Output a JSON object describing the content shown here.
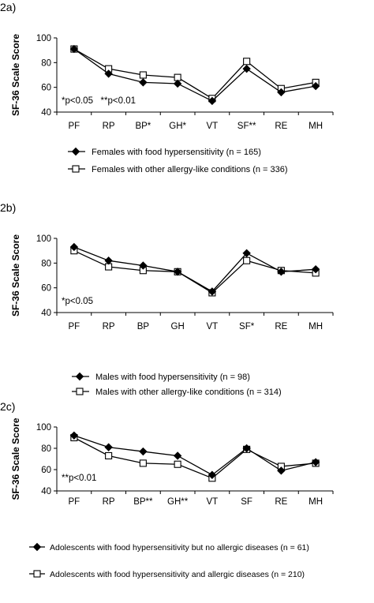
{
  "chart_data": [
    {
      "panel_label": "2a)",
      "type": "line",
      "ylabel": "SF-36 Scale Score",
      "ylim": [
        40,
        100
      ],
      "yticks": [
        40,
        60,
        80,
        100
      ],
      "categories": [
        "PF",
        "RP",
        "BP*",
        "GH*",
        "VT",
        "SF**",
        "RE",
        "MH"
      ],
      "annotation": "*p<0.05   **p<0.01",
      "legend_position": "bottom",
      "series": [
        {
          "name": "Females with food hypersensitivity (n = 165)",
          "marker": "diamond",
          "values": [
            91,
            71,
            64,
            63,
            49,
            75,
            56,
            61
          ]
        },
        {
          "name": "Females with other allergy-like conditions (n = 336)",
          "marker": "square",
          "values": [
            91,
            75,
            70,
            68,
            51,
            81,
            59,
            64
          ]
        }
      ]
    },
    {
      "panel_label": "2b)",
      "type": "line",
      "ylabel": "SF-36 Scale Score",
      "ylim": [
        40,
        100
      ],
      "yticks": [
        40,
        60,
        80,
        100
      ],
      "categories": [
        "PF",
        "RP",
        "BP",
        "GH",
        "VT",
        "SF*",
        "RE",
        "MH"
      ],
      "annotation": "*p<0.05",
      "legend_position": "bottom",
      "series": [
        {
          "name": "Males with food hypersensitivity (n = 98)",
          "marker": "diamond",
          "values": [
            93,
            82,
            78,
            73,
            57,
            88,
            73,
            75
          ]
        },
        {
          "name": "Males with other allergy-like conditions (n = 314)",
          "marker": "square",
          "values": [
            90,
            77,
            74,
            73,
            56,
            82,
            74,
            72
          ]
        }
      ]
    },
    {
      "panel_label": "2c)",
      "type": "line",
      "ylabel": "SF-36 Scale Score",
      "ylim": [
        40,
        100
      ],
      "yticks": [
        40,
        60,
        80,
        100
      ],
      "categories": [
        "PF",
        "RP",
        "BP**",
        "GH**",
        "VT",
        "SF",
        "RE",
        "MH"
      ],
      "annotation": "**p<0.01",
      "legend_position": "bottom",
      "series": [
        {
          "name": "Adolescents with food hypersensitivity but no allergic diseases (n = 61)",
          "marker": "diamond",
          "values": [
            92,
            81,
            77,
            73,
            55,
            80,
            59,
            67
          ]
        },
        {
          "name": "Adolescents with food hypersensitivity and allergic diseases (n = 210)",
          "marker": "square",
          "values": [
            90,
            73,
            66,
            65,
            52,
            79,
            63,
            66
          ]
        }
      ]
    }
  ]
}
